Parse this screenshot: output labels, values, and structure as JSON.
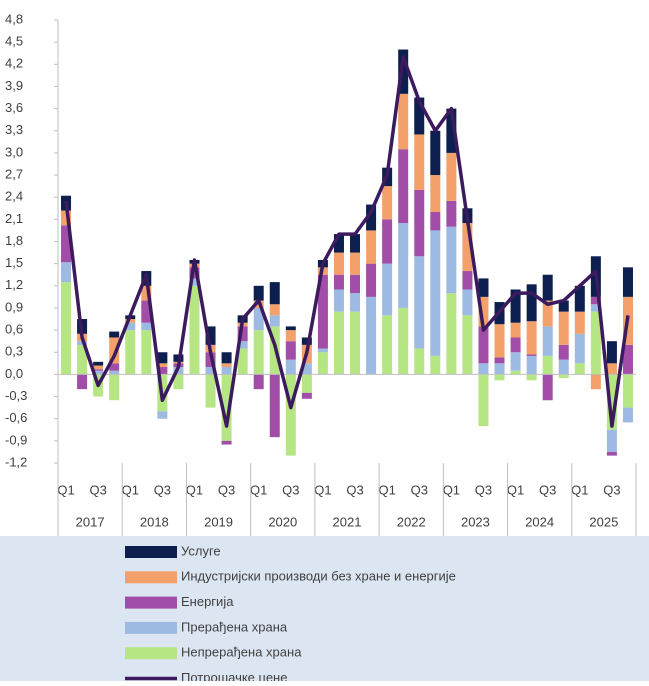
{
  "chart_data": {
    "type": "bar",
    "stacked": true,
    "categories": [
      "Q1",
      null,
      "Q3",
      null,
      "Q1",
      null,
      "Q3",
      null,
      "Q1",
      null,
      "Q3",
      null,
      "Q1",
      null,
      "Q3",
      null,
      "Q1",
      null,
      "Q3",
      null,
      "Q1",
      null,
      "Q3",
      null,
      "Q1",
      null,
      "Q3",
      null,
      "Q1",
      null,
      "Q3",
      null,
      "Q1",
      null,
      "Q3",
      null
    ],
    "years": [
      "2017",
      "2018",
      "2019",
      "2020",
      "2021",
      "2022",
      "2023",
      "2024",
      "2025"
    ],
    "ylim": [
      -1.2,
      4.8
    ],
    "yticks": [
      {
        "value": -1.2,
        "label": "-1,2"
      },
      {
        "value": -0.9,
        "label": "-0,9"
      },
      {
        "value": -0.6,
        "label": "-0,6"
      },
      {
        "value": -0.3,
        "label": "-0,3"
      },
      {
        "value": 0,
        "label": "0,0"
      },
      {
        "value": 0.3,
        "label": "0,3"
      },
      {
        "value": 0.6,
        "label": "0,6"
      },
      {
        "value": 0.9,
        "label": "0,9"
      },
      {
        "value": 1.2,
        "label": "1,2"
      },
      {
        "value": 1.5,
        "label": "1,5"
      },
      {
        "value": 1.8,
        "label": "1,8"
      },
      {
        "value": 2.1,
        "label": "2,1"
      },
      {
        "value": 2.4,
        "label": "2,4"
      },
      {
        "value": 2.7,
        "label": "2,7"
      },
      {
        "value": 3.0,
        "label": "3,0"
      },
      {
        "value": 3.3,
        "label": "3,3"
      },
      {
        "value": 3.6,
        "label": "3,6"
      },
      {
        "value": 3.9,
        "label": "3,9"
      },
      {
        "value": 4.2,
        "label": "4,2"
      },
      {
        "value": 4.5,
        "label": "4,5"
      },
      {
        "value": 4.8,
        "label": "4,8"
      }
    ],
    "grid": false,
    "series": [
      {
        "name": "Непрерађена храна",
        "color": "#b5e683",
        "values": [
          1.25,
          0.4,
          -0.3,
          -0.35,
          0.6,
          0.6,
          -0.5,
          -0.2,
          1.2,
          -0.45,
          -0.9,
          0.35,
          0.6,
          0.65,
          -1.1,
          -0.25,
          0.3,
          0.85,
          0.85,
          0.0,
          0.8,
          0.9,
          0.35,
          0.25,
          1.1,
          0.8,
          -0.7,
          -0.08,
          0.05,
          -0.08,
          0.25,
          -0.05,
          0.15,
          0.85,
          -0.75,
          -0.45
        ]
      },
      {
        "name": "Прерађена храна",
        "color": "#9dbae2",
        "values": [
          0.27,
          0.05,
          0.05,
          0.05,
          0.1,
          0.1,
          -0.1,
          0.1,
          0.1,
          0.1,
          0.1,
          0.1,
          0.3,
          0.15,
          0.2,
          0.15,
          0.05,
          0.3,
          0.25,
          1.05,
          0.7,
          1.15,
          1.25,
          1.7,
          0.9,
          0.35,
          0.15,
          0.15,
          0.25,
          0.25,
          0.4,
          0.2,
          0.4,
          0.1,
          -0.3,
          -0.2
        ]
      },
      {
        "name": "Енергија",
        "color": "#a24ea8",
        "values": [
          0.5,
          -0.2,
          0.02,
          0.1,
          0.0,
          0.3,
          0.1,
          0.05,
          0.15,
          0.2,
          -0.05,
          0.2,
          -0.2,
          -0.85,
          0.25,
          -0.08,
          1.0,
          0.2,
          0.25,
          0.45,
          0.6,
          1.0,
          0.9,
          0.25,
          0.35,
          0.25,
          0.5,
          0.08,
          0.2,
          0.02,
          -0.35,
          0.2,
          0.0,
          0.1,
          -0.05,
          0.4
        ]
      },
      {
        "name": "Индустријски производи без хране и енергије",
        "color": "#f3a06b",
        "values": [
          0.2,
          0.1,
          0.05,
          0.35,
          0.05,
          0.2,
          0.05,
          0.02,
          0.05,
          0.1,
          0.05,
          0.05,
          0.1,
          0.15,
          0.15,
          0.25,
          0.1,
          0.3,
          0.3,
          0.45,
          0.45,
          0.75,
          0.75,
          0.5,
          0.65,
          0.65,
          0.4,
          0.45,
          0.2,
          0.45,
          0.35,
          0.45,
          0.3,
          -0.2,
          0.15,
          0.65
        ]
      },
      {
        "name": "Услуге",
        "color": "#0d1f4f",
        "values": [
          0.2,
          0.2,
          0.05,
          0.08,
          0.05,
          0.2,
          0.15,
          0.1,
          0.05,
          0.25,
          0.15,
          0.1,
          0.2,
          0.3,
          0.05,
          0.1,
          0.1,
          0.25,
          0.25,
          0.35,
          0.25,
          0.6,
          0.5,
          0.6,
          0.6,
          0.2,
          0.25,
          0.3,
          0.45,
          0.5,
          0.35,
          0.15,
          0.35,
          0.55,
          0.3,
          0.4
        ]
      }
    ],
    "line": {
      "name": "Потрошачке цене",
      "color": "#3b1a5e",
      "values": [
        2.35,
        0.5,
        -0.15,
        0.25,
        0.8,
        1.35,
        -0.35,
        0.1,
        1.55,
        0.3,
        -0.7,
        0.75,
        1.0,
        0.4,
        -0.45,
        0.3,
        1.5,
        1.9,
        1.9,
        2.2,
        2.7,
        4.3,
        3.7,
        3.3,
        3.6,
        2.1,
        0.6,
        0.85,
        1.1,
        1.1,
        0.95,
        1.0,
        1.2,
        1.4,
        -0.7,
        0.8
      ]
    }
  }
}
